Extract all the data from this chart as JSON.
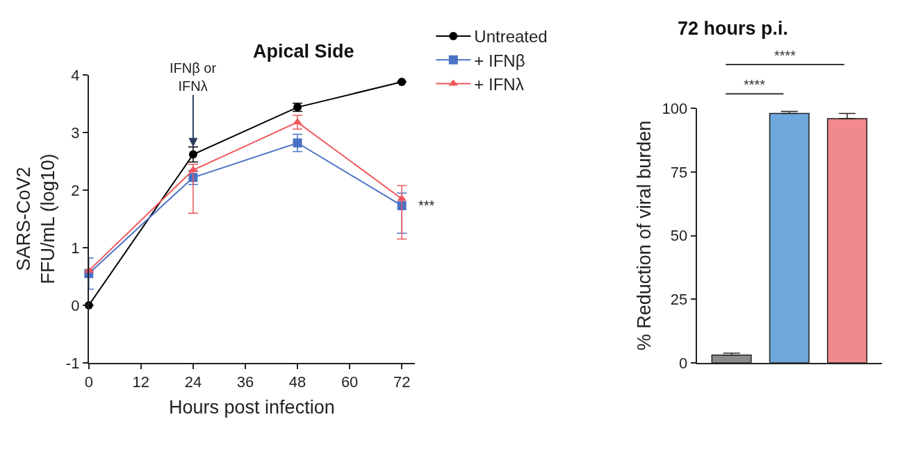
{
  "chart_data": [
    {
      "type": "line",
      "title": "Apical Side",
      "xlabel": "Hours post infection",
      "ylabel": "SARS-CoV2\nFFU/mL (log10)",
      "xlim": [
        0,
        75
      ],
      "xticks": [
        0,
        12,
        24,
        36,
        48,
        60,
        72
      ],
      "ylim": [
        -1,
        4
      ],
      "yticks": [
        -1,
        0,
        1,
        2,
        3,
        4
      ],
      "legend": "right",
      "line_style": "solid",
      "series": [
        {
          "name": "Untreated",
          "color": "#000000",
          "marker": "circle",
          "x": [
            0,
            24,
            48,
            72
          ],
          "values": [
            0,
            2.62,
            3.44,
            3.88
          ],
          "errors": [
            null,
            0.13,
            0.07,
            null
          ]
        },
        {
          "name": "+ IFNβ",
          "color": "#4a72c4",
          "marker": "square",
          "x": [
            0,
            24,
            48,
            72
          ],
          "values": [
            0.55,
            2.22,
            2.82,
            1.73
          ],
          "errors": [
            0.27,
            0.12,
            0.15,
            [
              1.25,
              1.95
            ]
          ]
        },
        {
          "name": "+ IFNλ",
          "color": "#f0565a",
          "marker": "triangle",
          "x": [
            0,
            24,
            48,
            72
          ],
          "values": [
            0.6,
            2.35,
            3.18,
            1.85
          ],
          "errors": [
            null,
            [
              1.6,
              2.45
            ],
            0.12,
            [
              1.15,
              2.08
            ]
          ]
        }
      ],
      "annotations": [
        {
          "text": "IFNβ or\nIFNλ",
          "x": 24,
          "y": 2.75
        },
        {
          "text": "***",
          "x": 72,
          "y": 1.73
        }
      ]
    },
    {
      "type": "bar",
      "title": "72 hours p.i.",
      "ylabel": "% Reduction of viral burden",
      "categories": [
        null,
        null,
        null
      ],
      "values": [
        3,
        98,
        96
      ],
      "colors": [
        "#8c8c8c",
        "#6fa8dc",
        "#f08a8c"
      ],
      "errors": [
        [
          3,
          3.8
        ],
        [
          98,
          98.8
        ],
        [
          96,
          98
        ]
      ],
      "ylim": [
        0,
        100
      ],
      "yticks": [
        0,
        25,
        50,
        75,
        100
      ],
      "tick_labels": "y",
      "annotations": [
        "****",
        "****"
      ]
    }
  ]
}
